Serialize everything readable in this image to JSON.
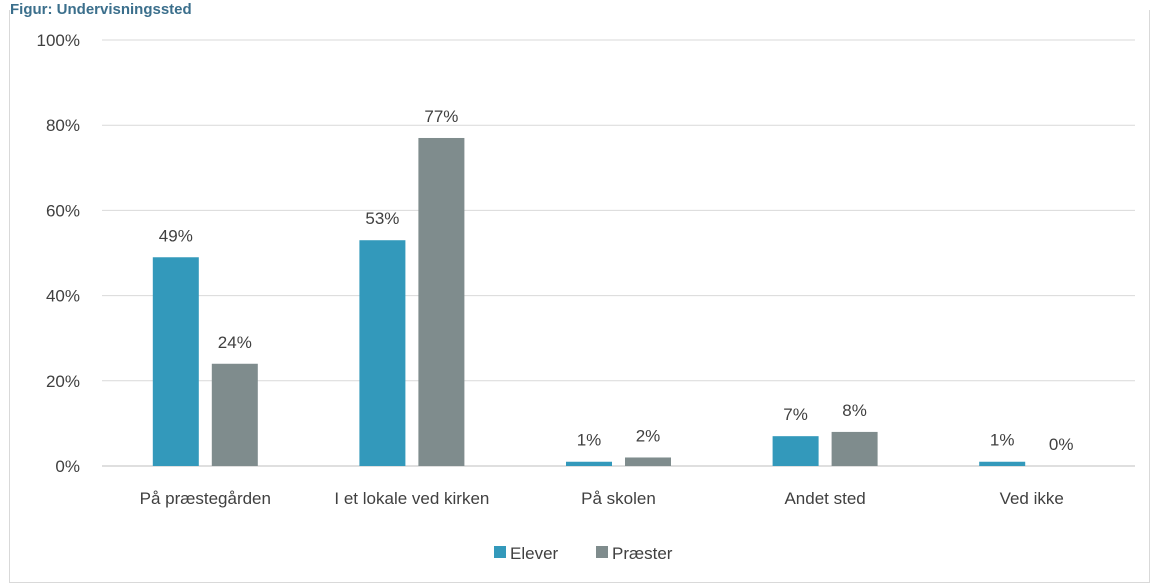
{
  "header": {
    "title": "Figur: Undervisningssted"
  },
  "colors": {
    "elever": "#3399bb",
    "praester": "#7f8c8d",
    "grid": "#d9d9d9",
    "text": "#404040"
  },
  "chart_data": {
    "type": "bar",
    "categories": [
      "På præstegården",
      "I et lokale ved kirken",
      "På skolen",
      "Andet sted",
      "Ved ikke"
    ],
    "series": [
      {
        "name": "Elever",
        "values": [
          49,
          53,
          1,
          7,
          1
        ],
        "labels": [
          "49%",
          "53%",
          "1%",
          "7%",
          "1%"
        ]
      },
      {
        "name": "Præster",
        "values": [
          24,
          77,
          2,
          8,
          0
        ],
        "labels": [
          "24%",
          "77%",
          "2%",
          "8%",
          "0%"
        ]
      }
    ],
    "y_ticks": [
      "0%",
      "20%",
      "40%",
      "60%",
      "80%",
      "100%"
    ],
    "ylim": [
      0,
      100
    ],
    "grid": true,
    "legend": "bottom"
  }
}
